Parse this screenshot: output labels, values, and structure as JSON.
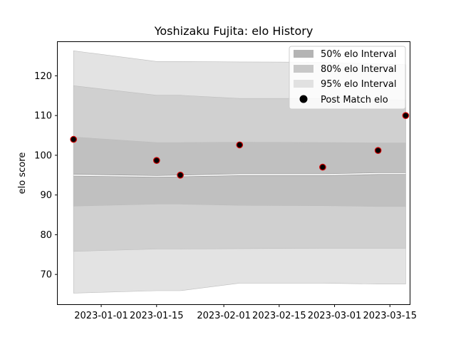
{
  "chart_data": {
    "type": "area",
    "title": "Yoshizaku Fujita: elo History",
    "xlabel": "",
    "ylabel": "elo score",
    "x_ticks": [
      "2023-01-01",
      "2023-01-15",
      "2023-02-01",
      "2023-02-15",
      "2023-03-01",
      "2023-03-15"
    ],
    "y_ticks": [
      70,
      80,
      90,
      100,
      110,
      120
    ],
    "xlim": [
      "2022-12-21",
      "2023-03-20"
    ],
    "ylim": [
      62.5,
      128.5
    ],
    "grid": false,
    "legend_position": "top-right",
    "band_x": [
      "2022-12-25",
      "2023-01-15",
      "2023-01-21",
      "2023-02-05",
      "2023-02-26",
      "2023-03-12",
      "2023-03-19"
    ],
    "median": [
      95.0,
      94.7,
      94.8,
      95.1,
      95.1,
      95.4,
      95.4
    ],
    "bands": [
      {
        "name": "95% elo Interval",
        "color": "#e3e3e3",
        "lower": [
          65.3,
          65.9,
          65.9,
          67.8,
          67.8,
          67.6,
          67.6
        ],
        "upper": [
          126.3,
          123.6,
          123.6,
          123.5,
          123.4,
          123.0,
          122.8
        ]
      },
      {
        "name": "80% elo Interval",
        "color": "#d0d0d0",
        "lower": [
          75.8,
          76.4,
          76.4,
          76.5,
          76.6,
          76.6,
          76.6
        ],
        "upper": [
          117.5,
          115.1,
          115.1,
          114.3,
          114.3,
          114.0,
          113.9
        ]
      },
      {
        "name": "50% elo Interval",
        "color": "#c0c0c0",
        "lower": [
          87.2,
          87.7,
          87.7,
          87.4,
          87.3,
          87.1,
          87.1
        ],
        "upper": [
          104.6,
          103.2,
          103.2,
          103.3,
          103.2,
          103.1,
          103.1
        ]
      }
    ],
    "points_name": "Post Match elo",
    "points": [
      {
        "x": "2022-12-25",
        "y": 104.0
      },
      {
        "x": "2023-01-15",
        "y": 98.7
      },
      {
        "x": "2023-01-21",
        "y": 95.0
      },
      {
        "x": "2023-02-05",
        "y": 102.6
      },
      {
        "x": "2023-02-26",
        "y": 97.0
      },
      {
        "x": "2023-03-12",
        "y": 101.2
      },
      {
        "x": "2023-03-19",
        "y": 110.0
      }
    ],
    "legend": [
      "50% elo Interval",
      "80% elo Interval",
      "95% elo Interval",
      "Post Match elo"
    ]
  },
  "colors": {
    "marker_fill": "#000000",
    "marker_edge": "#d00000",
    "median_line": "#ffffff",
    "legend_50": "#b4b4b4",
    "legend_80": "#c8c8c8",
    "legend_95": "#e1e1e1"
  }
}
